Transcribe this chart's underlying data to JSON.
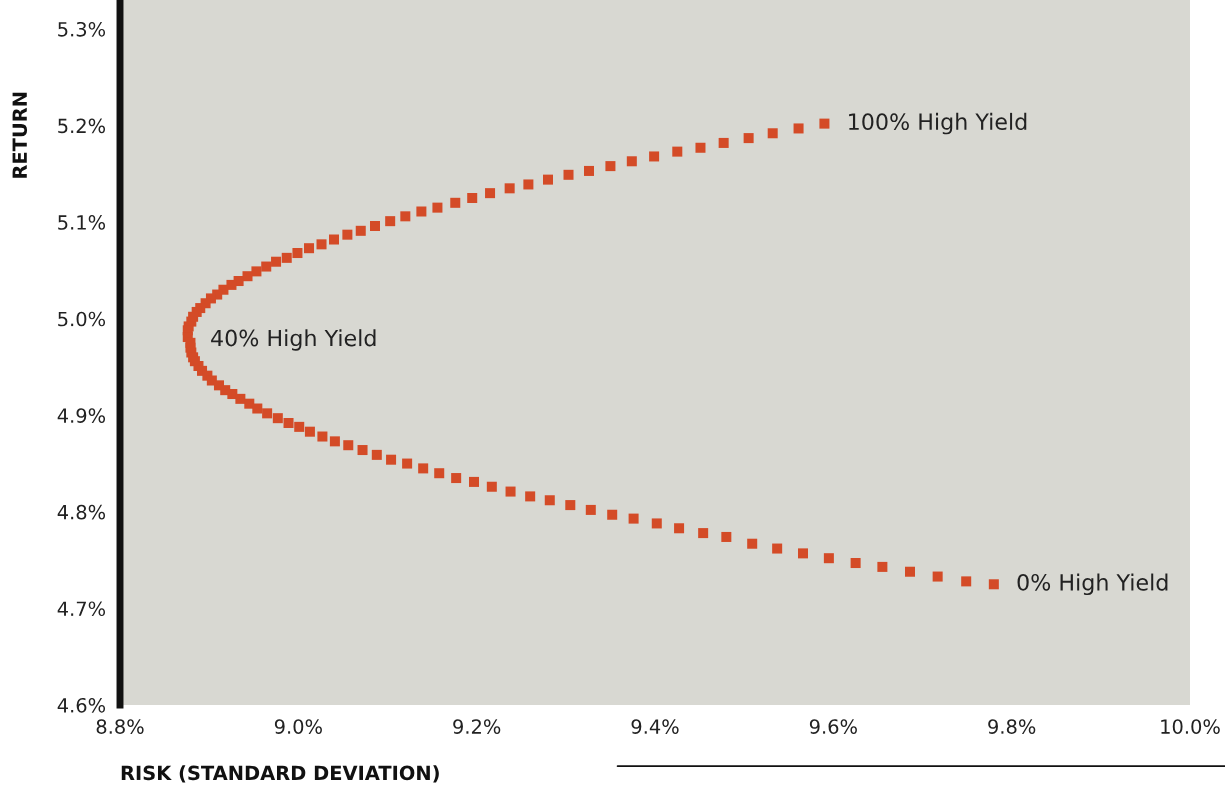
{
  "chart_data": {
    "type": "scatter",
    "xlabel": "RISK (STANDARD DEVIATION)",
    "ylabel": "RETURN",
    "xlim": [
      8.8,
      10.0
    ],
    "ylim": [
      4.6,
      5.33
    ],
    "xticks": [
      {
        "value": 8.8,
        "label": "8.8%"
      },
      {
        "value": 9.0,
        "label": "9.0%"
      },
      {
        "value": 9.2,
        "label": "9.2%"
      },
      {
        "value": 9.4,
        "label": "9.4%"
      },
      {
        "value": 9.6,
        "label": "9.6%"
      },
      {
        "value": 9.8,
        "label": "9.8%"
      },
      {
        "value": 10.0,
        "label": "10.0%"
      }
    ],
    "yticks": [
      {
        "value": 4.6,
        "label": "4.6%"
      },
      {
        "value": 4.7,
        "label": "4.7%"
      },
      {
        "value": 4.8,
        "label": "4.8%"
      },
      {
        "value": 4.9,
        "label": "4.9%"
      },
      {
        "value": 5.0,
        "label": "5.0%"
      },
      {
        "value": 5.1,
        "label": "5.1%"
      },
      {
        "value": 5.2,
        "label": "5.2%"
      },
      {
        "value": 5.3,
        "label": "5.3%"
      }
    ],
    "marker": "square",
    "grid": false,
    "legend": false,
    "series": [
      {
        "color": "#d44b27",
        "x": [
          9.59,
          9.561,
          9.532,
          9.505,
          9.477,
          9.451,
          9.425,
          9.399,
          9.374,
          9.35,
          9.326,
          9.303,
          9.28,
          9.258,
          9.237,
          9.215,
          9.195,
          9.176,
          9.156,
          9.138,
          9.12,
          9.103,
          9.086,
          9.07,
          9.055,
          9.04,
          9.026,
          9.012,
          8.999,
          8.987,
          8.975,
          8.964,
          8.953,
          8.943,
          8.933,
          8.925,
          8.916,
          8.909,
          8.902,
          8.896,
          8.89,
          8.886,
          8.882,
          8.88,
          8.877,
          8.876,
          8.876,
          8.879,
          8.879,
          8.88,
          8.882,
          8.884,
          8.888,
          8.892,
          8.898,
          8.903,
          8.911,
          8.918,
          8.926,
          8.935,
          8.945,
          8.954,
          8.965,
          8.977,
          8.989,
          9.001,
          9.013,
          9.027,
          9.041,
          9.056,
          9.072,
          9.088,
          9.104,
          9.122,
          9.14,
          9.158,
          9.177,
          9.197,
          9.217,
          9.238,
          9.26,
          9.282,
          9.305,
          9.328,
          9.352,
          9.376,
          9.402,
          9.427,
          9.454,
          9.48,
          9.509,
          9.537,
          9.566,
          9.595,
          9.625,
          9.655,
          9.686,
          9.717,
          9.749,
          9.78
        ],
        "values": [
          5.202,
          5.197,
          5.192,
          5.187,
          5.182,
          5.177,
          5.173,
          5.168,
          5.163,
          5.158,
          5.153,
          5.149,
          5.144,
          5.139,
          5.135,
          5.13,
          5.125,
          5.12,
          5.115,
          5.111,
          5.106,
          5.101,
          5.096,
          5.091,
          5.087,
          5.082,
          5.077,
          5.073,
          5.068,
          5.063,
          5.059,
          5.054,
          5.049,
          5.044,
          5.039,
          5.035,
          5.03,
          5.025,
          5.021,
          5.016,
          5.011,
          5.007,
          5.002,
          4.997,
          4.992,
          4.988,
          4.981,
          4.975,
          4.97,
          4.965,
          4.96,
          4.956,
          4.951,
          4.946,
          4.941,
          4.936,
          4.931,
          4.926,
          4.922,
          4.917,
          4.912,
          4.907,
          4.902,
          4.897,
          4.892,
          4.888,
          4.883,
          4.878,
          4.873,
          4.869,
          4.864,
          4.859,
          4.854,
          4.85,
          4.845,
          4.84,
          4.835,
          4.831,
          4.826,
          4.821,
          4.816,
          4.812,
          4.807,
          4.802,
          4.797,
          4.793,
          4.788,
          4.783,
          4.778,
          4.774,
          4.767,
          4.762,
          4.757,
          4.752,
          4.747,
          4.743,
          4.738,
          4.733,
          4.728,
          4.725
        ]
      }
    ],
    "annotations": [
      {
        "text": "100% High Yield",
        "x": 9.59,
        "y": 5.202
      },
      {
        "text": "40% High Yield",
        "x": 8.876,
        "y": 4.978
      },
      {
        "text": "0% High Yield",
        "x": 9.78,
        "y": 4.725
      }
    ]
  }
}
